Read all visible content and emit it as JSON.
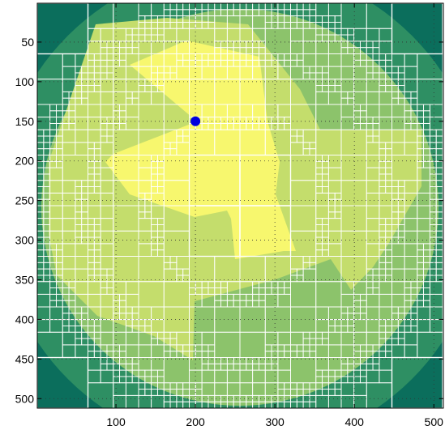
{
  "chart_data": {
    "type": "heatmap",
    "description_free": true,
    "xlim": [
      1,
      512
    ],
    "ylim": [
      1,
      512
    ],
    "y_reversed": true,
    "x_ticks": [
      100,
      200,
      300,
      400,
      500
    ],
    "y_ticks": [
      50,
      100,
      150,
      200,
      250,
      300,
      350,
      400,
      450,
      500
    ],
    "x_tick_labels": [
      "100",
      "200",
      "300",
      "400",
      "500"
    ],
    "y_tick_labels": [
      "50",
      "100",
      "150",
      "200",
      "250",
      "300",
      "350",
      "400",
      "450",
      "500"
    ],
    "grid": "dotted",
    "colormap": [
      "#0b6e5c",
      "#3a9b6a",
      "#75b96a",
      "#a8cf6a",
      "#d3e26c",
      "#f5f56e",
      "#ffff80"
    ],
    "regions": {
      "outer_corners": {
        "level": 0
      },
      "outer_ring": {
        "level": 1
      },
      "main_disk": {
        "level": 2
      },
      "interior": {
        "level": 4
      },
      "sector": {
        "level": 5
      }
    },
    "marker": {
      "x": 200,
      "y": 150,
      "color": "#0000dd"
    },
    "quadtree_line_color": "#ffffff"
  }
}
